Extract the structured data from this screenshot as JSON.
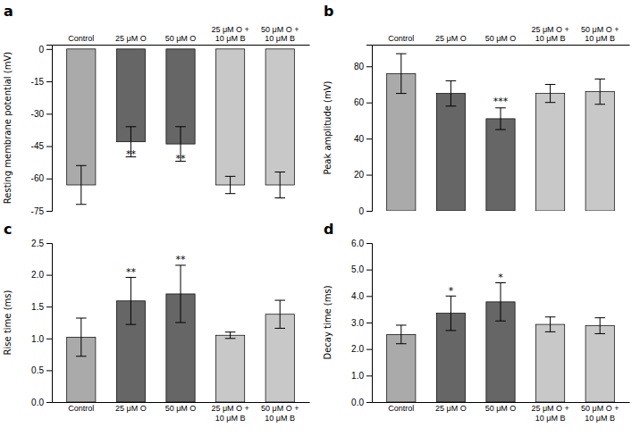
{
  "chart_data": [
    {
      "type": "bar",
      "title": "a",
      "y_label": "Resting membrane potential (mV)",
      "categories": [
        "Control",
        "25 μM O",
        "50 μM O",
        "25 μM O +\n10 μM B",
        "50 μM O +\n10 μM B"
      ],
      "values": [
        -63,
        -43,
        -44,
        -63,
        -63
      ],
      "errors": [
        9,
        7,
        8,
        4,
        6
      ],
      "colors": [
        "#aaaaaa",
        "#666666",
        "#666666",
        "#c8c8c8",
        "#c8c8c8"
      ],
      "ylim": [
        -75,
        2
      ],
      "yticks": [
        0,
        -15,
        -30,
        -45,
        -60,
        -75
      ],
      "annotations": [
        {
          "category": "25 μM O",
          "y": -51,
          "text": "**"
        },
        {
          "category": "50 μM O",
          "y": -53,
          "text": "**"
        }
      ]
    },
    {
      "type": "bar",
      "title": "b",
      "y_label": "Peak amplitude (mV)",
      "categories": [
        "Control",
        "25 μM O",
        "50 μM O",
        "25 μM O +\n10 μM B",
        "50 μM O +\n10 μM B"
      ],
      "values": [
        76,
        65,
        51,
        65,
        66
      ],
      "errors": [
        11,
        7,
        6,
        5,
        7
      ],
      "colors": [
        "#aaaaaa",
        "#666666",
        "#666666",
        "#c8c8c8",
        "#c8c8c8"
      ],
      "ylim": [
        0,
        92
      ],
      "yticks": [
        0,
        20,
        40,
        60,
        80
      ],
      "annotations": [
        {
          "category": "50 μM O",
          "y": 58,
          "text": "***"
        }
      ]
    },
    {
      "type": "bar",
      "title": "c",
      "y_label": "Rise time (ms)",
      "categories": [
        "Control",
        "25 μM O",
        "50 μM O",
        "25 μM O +\n10 μM B",
        "50 μM O +\n10 μM B"
      ],
      "values": [
        1.02,
        1.59,
        1.7,
        1.05,
        1.38
      ],
      "errors": [
        0.3,
        0.37,
        0.45,
        0.05,
        0.22
      ],
      "colors": [
        "#aaaaaa",
        "#666666",
        "#666666",
        "#c8c8c8",
        "#c8c8c8"
      ],
      "ylim": [
        0.0,
        2.5
      ],
      "yticks": [
        {
          "value": 0.0,
          "label": "0.0"
        },
        0.5,
        {
          "value": 1.0,
          "label": "1.0"
        },
        1.5,
        {
          "value": 2.0,
          "label": "2.0"
        },
        2.5
      ],
      "annotations": [
        {
          "category": "25 μM O",
          "y": 1.97,
          "text": "**"
        },
        {
          "category": "50 μM O",
          "y": 2.16,
          "text": "**"
        }
      ]
    },
    {
      "type": "bar",
      "title": "d",
      "y_label": "Decay time (ms)",
      "categories": [
        "Control",
        "25 μM O",
        "50 μM O",
        "25 μM O +\n10 μM B",
        "50 μM O +\n10 μM B"
      ],
      "values": [
        2.55,
        3.35,
        3.78,
        2.93,
        2.88
      ],
      "errors": [
        0.35,
        0.65,
        0.72,
        0.28,
        0.3
      ],
      "colors": [
        "#aaaaaa",
        "#666666",
        "#666666",
        "#c8c8c8",
        "#c8c8c8"
      ],
      "ylim": [
        0.0,
        6.0
      ],
      "yticks": [
        {
          "value": 0.0,
          "label": "0.0"
        },
        {
          "value": 1.0,
          "label": "1.0"
        },
        {
          "value": 2.0,
          "label": "2.0"
        },
        {
          "value": 3.0,
          "label": "3.0"
        },
        {
          "value": 4.0,
          "label": "4.0"
        },
        {
          "value": 5.0,
          "label": "5.0"
        },
        {
          "value": 6.0,
          "label": "6.0"
        }
      ],
      "annotations": [
        {
          "category": "25 μM O",
          "y": 4.02,
          "text": "*"
        },
        {
          "category": "50 μM O",
          "y": 4.52,
          "text": "*"
        }
      ]
    }
  ]
}
